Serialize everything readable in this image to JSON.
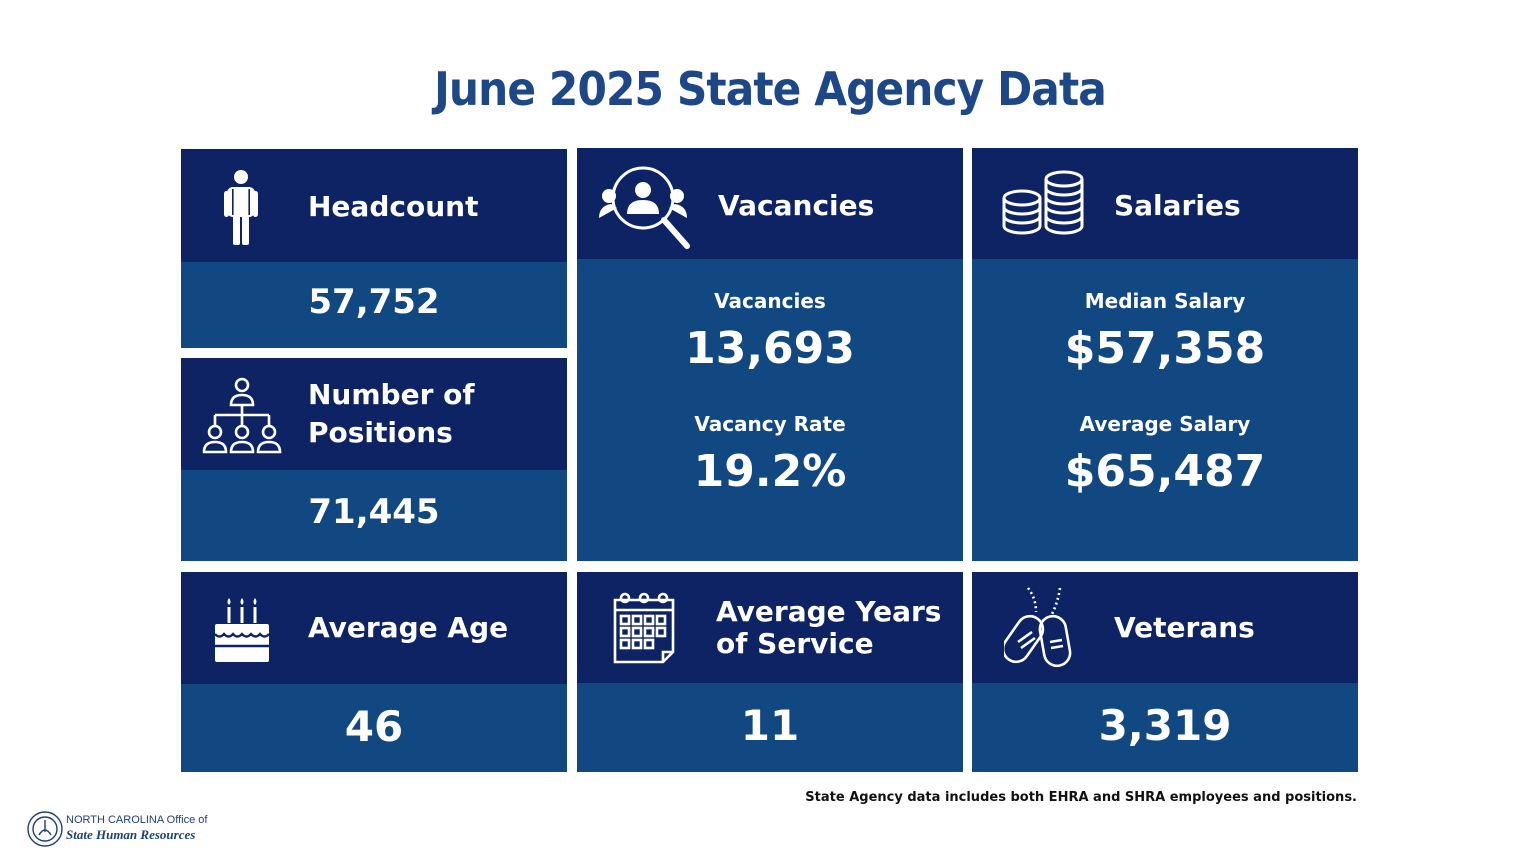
{
  "title": "June 2025 State Agency Data",
  "headcount": {
    "label": "Headcount",
    "value": "57,752",
    "icon": "person-icon"
  },
  "positions": {
    "label_line1": "Number of",
    "label_line2": "Positions",
    "value": "71,445",
    "icon": "org-chart-icon"
  },
  "vacancies": {
    "label": "Vacancies",
    "icon": "magnifier-people-icon",
    "count_label": "Vacancies",
    "count_value": "13,693",
    "rate_label": "Vacancy Rate",
    "rate_value": "19.2%"
  },
  "salaries": {
    "label": "Salaries",
    "icon": "coin-stacks-icon",
    "median_label": "Median Salary",
    "median_value": "$57,358",
    "average_label": "Average Salary",
    "average_value": "$65,487"
  },
  "age": {
    "label": "Average Age",
    "value": "46",
    "icon": "birthday-cake-icon"
  },
  "service": {
    "label_line1": "Average Years",
    "label_line2": "of Service",
    "value": "11",
    "icon": "calendar-icon"
  },
  "veterans": {
    "label": "Veterans",
    "value": "3,319",
    "icon": "dog-tags-icon"
  },
  "footnote": "State Agency data includes both EHRA and SHRA employees and positions.",
  "logo": {
    "line1": "NORTH CAROLINA Office of",
    "line2": "State Human Resources"
  },
  "colors": {
    "header": "#0d2364",
    "body": "#124882",
    "title": "#1d4786"
  }
}
